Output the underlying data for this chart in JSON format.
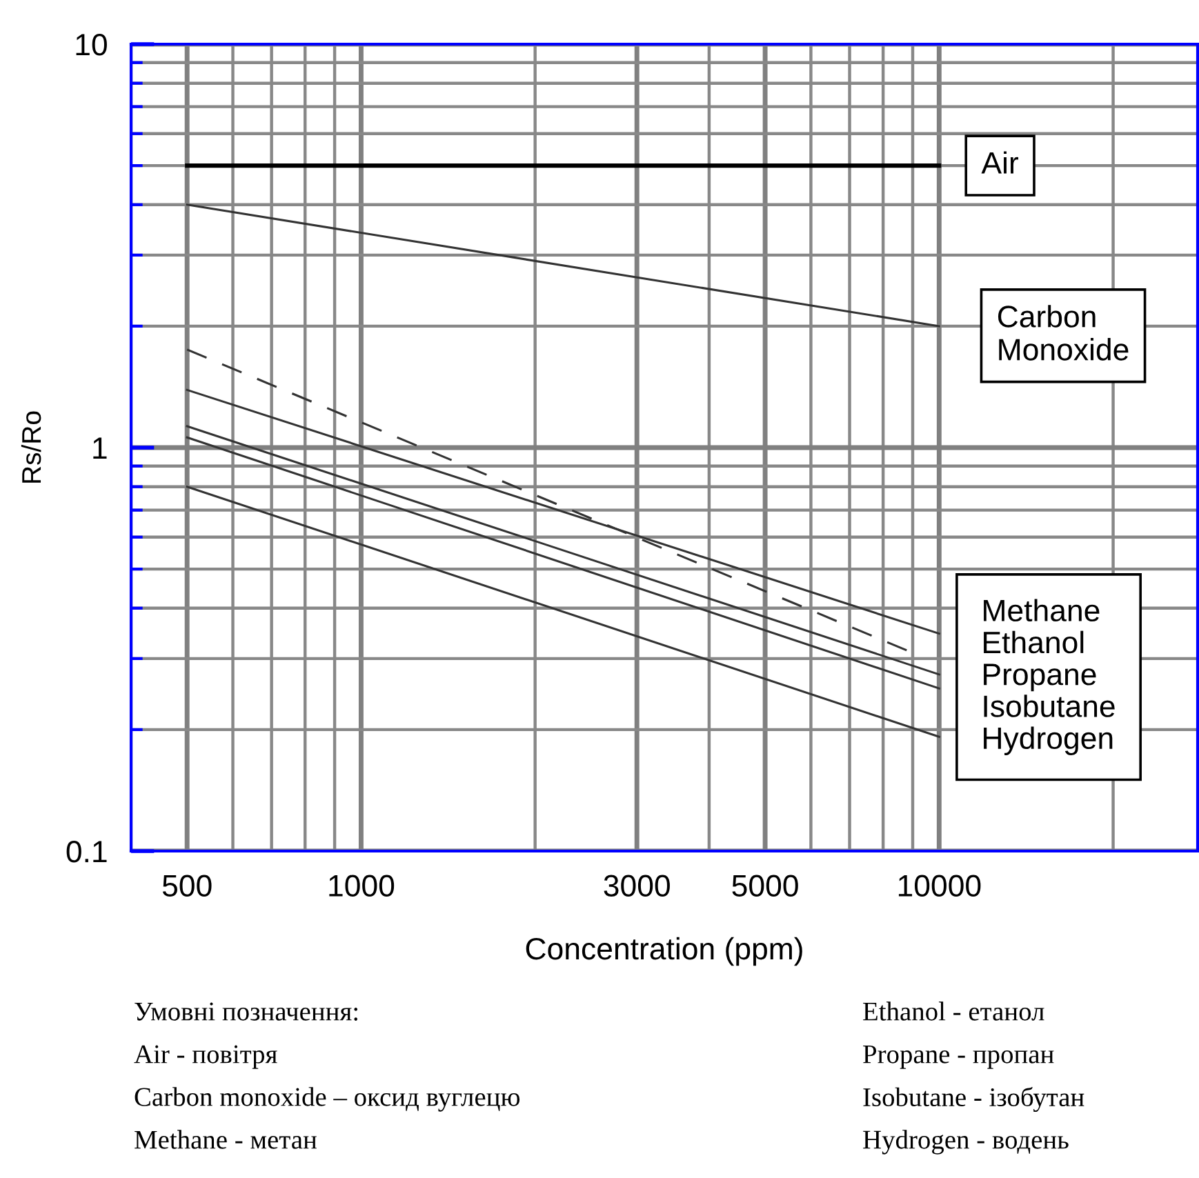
{
  "chart_data": {
    "type": "line",
    "xlabel": "Concentration (ppm)",
    "ylabel": "Rs/Ro",
    "log": "xy",
    "xlim": [
      400,
      28000
    ],
    "ylim": [
      0.1,
      10
    ],
    "xticks": [
      500,
      1000,
      3000,
      5000,
      10000
    ],
    "yticks": [
      0.1,
      1,
      10
    ],
    "grid": true,
    "line_style": "solid",
    "marker": "none",
    "series": [
      {
        "name": "Air",
        "color": "#000000",
        "x": [
          500,
          10000
        ],
        "values": [
          5.0,
          5.0
        ]
      },
      {
        "name": "Carbon Monoxide",
        "color": "#333333",
        "x": [
          500,
          10000
        ],
        "values": [
          4.0,
          2.0
        ]
      },
      {
        "color": "#333333",
        "x": [
          500,
          9000
        ],
        "values": [
          1.75,
          0.31
        ],
        "line_style": "dashed"
      },
      {
        "color": "#333333",
        "x": [
          500,
          10000
        ],
        "values": [
          1.39,
          0.346
        ]
      },
      {
        "color": "#333333",
        "x": [
          500,
          10000
        ],
        "values": [
          1.13,
          0.274
        ]
      },
      {
        "color": "#333333",
        "x": [
          500,
          10000
        ],
        "values": [
          1.06,
          0.253
        ]
      },
      {
        "color": "#333333",
        "x": [
          500,
          10000
        ],
        "values": [
          0.8,
          0.192
        ]
      }
    ],
    "annotations": [
      {
        "text": "Methane\nEthanol\nPropane\nIsobutane\nHydrogen",
        "x": 10000,
        "y": 0.27
      },
      "Умовні позначення:",
      "Air - повітря",
      "Carbon monoxide – оксид вуглецю",
      "Methane - метан",
      "Ethanol - етанол",
      "Propane - пропан",
      "Isobutane - ізобутан",
      "Hydrogen - водень"
    ]
  }
}
